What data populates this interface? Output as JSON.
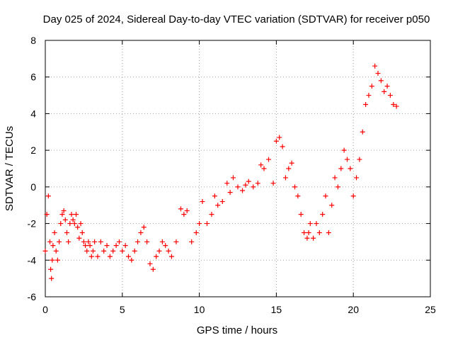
{
  "chart_data": {
    "type": "scatter",
    "title": "Day 025 of 2024, Sidereal Day-to-day VTEC variation (SDTVAR) for receiver p050",
    "xlabel": "GPS time / hours",
    "ylabel": "SDTVAR / TECUs",
    "xlim": [
      0,
      25
    ],
    "ylim": [
      -6,
      8
    ],
    "xticks": [
      "0",
      "5",
      "10",
      "15",
      "20",
      "25"
    ],
    "yticks": [
      "-6",
      "-4",
      "-2",
      "0",
      "2",
      "4",
      "6",
      "8"
    ],
    "grid": true,
    "marker": "+",
    "color": "#ff0000",
    "series": [
      {
        "name": "SDTVAR",
        "x": [
          0.0,
          0.1,
          0.2,
          0.3,
          0.35,
          0.4,
          0.45,
          0.5,
          0.6,
          0.7,
          0.8,
          0.9,
          1.0,
          1.1,
          1.2,
          1.3,
          1.4,
          1.5,
          1.6,
          1.7,
          1.8,
          1.9,
          2.0,
          2.1,
          2.2,
          2.3,
          2.4,
          2.5,
          2.6,
          2.7,
          2.8,
          2.9,
          3.0,
          3.1,
          3.2,
          3.4,
          3.6,
          3.8,
          4.0,
          4.2,
          4.4,
          4.6,
          4.8,
          5.0,
          5.2,
          5.4,
          5.6,
          5.8,
          6.0,
          6.2,
          6.4,
          6.6,
          6.8,
          7.0,
          7.2,
          7.4,
          7.6,
          7.8,
          8.0,
          8.2,
          8.5,
          8.8,
          9.0,
          9.2,
          9.5,
          9.8,
          10.0,
          10.2,
          10.5,
          10.8,
          11.0,
          11.2,
          11.5,
          11.8,
          12.0,
          12.2,
          12.5,
          12.8,
          13.0,
          13.2,
          13.5,
          13.8,
          14.0,
          14.2,
          14.5,
          14.8,
          15.0,
          15.2,
          15.4,
          15.6,
          15.8,
          16.0,
          16.2,
          16.4,
          16.6,
          16.8,
          17.0,
          17.1,
          17.2,
          17.4,
          17.6,
          17.8,
          18.0,
          18.2,
          18.4,
          18.6,
          18.8,
          19.0,
          19.2,
          19.4,
          19.6,
          19.8,
          20.0,
          20.2,
          20.4,
          20.6,
          20.8,
          21.0,
          21.2,
          21.4,
          21.6,
          21.8,
          22.0,
          22.2,
          22.4,
          22.6,
          22.8
        ],
        "values": [
          -3.5,
          -1.5,
          -0.5,
          -3.0,
          -4.5,
          -5.0,
          -4.0,
          -3.2,
          -2.5,
          -3.5,
          -4.0,
          -3.0,
          -2.0,
          -1.5,
          -1.3,
          -1.8,
          -2.5,
          -3.0,
          -2.0,
          -1.5,
          -1.8,
          -2.0,
          -1.5,
          -2.2,
          -2.8,
          -2.0,
          -2.5,
          -3.0,
          -3.2,
          -3.5,
          -3.0,
          -3.2,
          -3.8,
          -3.5,
          -3.0,
          -3.8,
          -3.0,
          -3.5,
          -3.2,
          -3.8,
          -3.5,
          -3.2,
          -3.0,
          -3.5,
          -3.2,
          -3.8,
          -4.0,
          -3.5,
          -3.0,
          -2.5,
          -2.2,
          -3.0,
          -4.2,
          -4.5,
          -3.8,
          -3.5,
          -3.0,
          -3.2,
          -3.5,
          -3.8,
          -3.0,
          -1.2,
          -1.5,
          -1.3,
          -3.0,
          -2.5,
          -2.0,
          -0.8,
          -2.0,
          -1.5,
          -0.5,
          -1.0,
          -0.8,
          0.2,
          -0.3,
          0.5,
          0.0,
          -0.2,
          0.1,
          0.3,
          0.0,
          0.2,
          1.2,
          1.0,
          1.5,
          0.2,
          2.5,
          2.7,
          2.2,
          0.5,
          1.0,
          1.3,
          0.0,
          -0.5,
          -1.5,
          -2.5,
          -2.8,
          -2.5,
          -2.0,
          -2.8,
          -2.0,
          -2.5,
          -1.5,
          -0.5,
          -2.5,
          -1.0,
          0.5,
          0.0,
          1.0,
          2.0,
          1.5,
          1.0,
          -0.5,
          0.5,
          1.5,
          3.0,
          4.5,
          5.0,
          5.5,
          6.6,
          6.2,
          5.8,
          5.2,
          5.5,
          5.0,
          4.5,
          4.4
        ]
      }
    ]
  }
}
